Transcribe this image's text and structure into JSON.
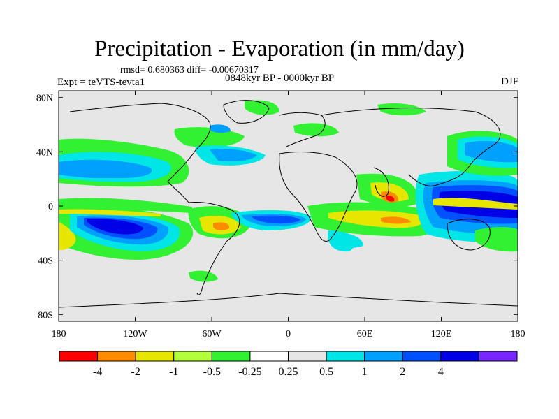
{
  "title": "Precipitation - Evaporation (in mm/day)",
  "stats_text": "rmsd= 0.680363  diff= -0.00670317",
  "left_label": "Expt = teVTS-tevta1",
  "center_label": "0848kyr BP - 0000kyr BP",
  "right_label": "DJF",
  "lat_ticks": [
    "80N",
    "40N",
    "0",
    "40S",
    "80S"
  ],
  "lon_ticks": [
    "180",
    "120W",
    "60W",
    "0",
    "60E",
    "120E",
    "180"
  ],
  "colorbar": {
    "colors": [
      "#ff0000",
      "#ff8c00",
      "#e6e600",
      "#b4ff3c",
      "#32f032",
      "#ffffff",
      "#e6e6e6",
      "#00e6e6",
      "#00a0ff",
      "#0050ff",
      "#0000e6",
      "#7828ff"
    ],
    "labels": [
      "-4",
      "-2",
      "-1",
      "-0.5",
      "-0.25",
      "0.25",
      "0.5",
      "1",
      "2",
      "4"
    ]
  },
  "colors": {
    "background": "#e6e6e6",
    "coastline": "#000000"
  }
}
